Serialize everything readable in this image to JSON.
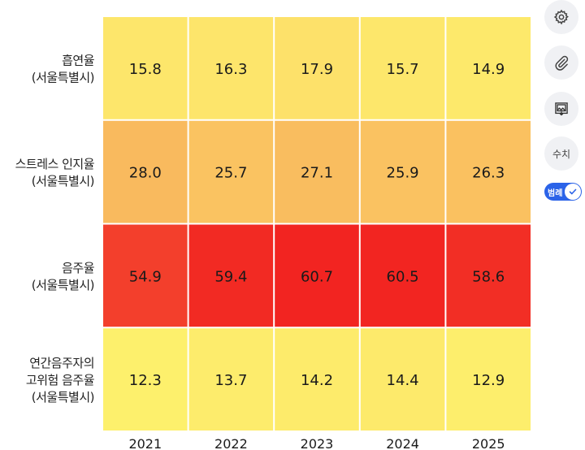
{
  "chart_data": {
    "type": "heatmap",
    "title": "",
    "xlabel": "",
    "ylabel": "",
    "x": [
      "2021",
      "2022",
      "2023",
      "2024",
      "2025"
    ],
    "rows": [
      {
        "label_lines": [
          "흡연율",
          "(서울특별시)"
        ],
        "values": [
          15.8,
          16.3,
          17.9,
          15.7,
          14.9
        ]
      },
      {
        "label_lines": [
          "스트레스 인지율",
          "(서울특별시)"
        ],
        "values": [
          28.0,
          25.7,
          27.1,
          25.9,
          26.3
        ]
      },
      {
        "label_lines": [
          "음주율",
          "(서울특별시)"
        ],
        "values": [
          54.9,
          59.4,
          60.7,
          60.5,
          58.6
        ]
      },
      {
        "label_lines": [
          "연간음주자의",
          "고위험 음주율",
          "(서울특별시)"
        ],
        "values": [
          12.3,
          13.7,
          14.2,
          14.4,
          12.9
        ]
      }
    ],
    "value_format": "1 decimal",
    "color_scale": [
      "#fdf06c",
      "#fde06a",
      "#f9b95e",
      "#f22421"
    ],
    "grid": false,
    "legend": "none"
  },
  "toolbar": {
    "settings_icon": "gear-icon",
    "attach_icon": "paperclip-icon",
    "export_icon": "image-download-icon",
    "values_label": "수치",
    "legend_label": "범례",
    "legend_on": true
  },
  "colors": {
    "accent": "#2b63e8",
    "button_bg": "#f0f1f4"
  }
}
